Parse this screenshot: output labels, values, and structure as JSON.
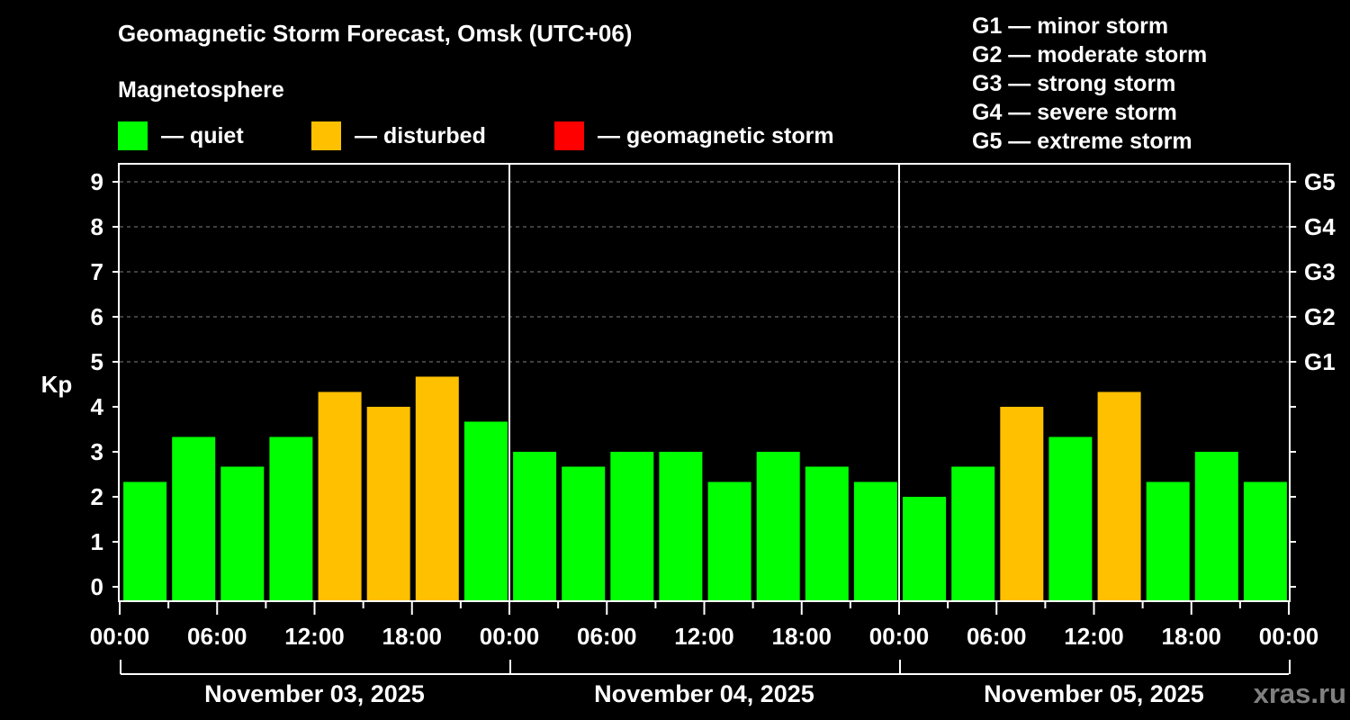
{
  "header": {
    "title": "Geomagnetic Storm Forecast, Omsk (UTC+06)",
    "subtitle": "Magnetosphere"
  },
  "legend": {
    "items": [
      {
        "label": "— quiet",
        "color": "#00ff00"
      },
      {
        "label": "— disturbed",
        "color": "#ffc000"
      },
      {
        "label": "— geomagnetic storm",
        "color": "#ff0000"
      }
    ]
  },
  "storm_scale": [
    "G1 — minor storm",
    "G2 — moderate storm",
    "G3 — strong storm",
    "G4 — severe storm",
    "G5 — extreme storm"
  ],
  "watermark": "xras.ru",
  "colors": {
    "quiet": "#00ff00",
    "disturbed": "#ffc000",
    "storm": "#ff0000",
    "background": "#000000",
    "axis": "#ffffff",
    "grid": "#808080",
    "watermark": "#808080"
  },
  "chart_data": {
    "type": "bar",
    "title": "Geomagnetic Storm Forecast, Omsk (UTC+06)",
    "subtitle": "Magnetosphere",
    "xlabel": "",
    "ylabel": "Kp",
    "ylim": [
      0,
      9
    ],
    "yticks": [
      0,
      1,
      2,
      3,
      4,
      5,
      6,
      7,
      8,
      9
    ],
    "right_axis_labels": [
      {
        "value": 5,
        "label": "G1"
      },
      {
        "value": 6,
        "label": "G2"
      },
      {
        "value": 7,
        "label": "G3"
      },
      {
        "value": 8,
        "label": "G4"
      },
      {
        "value": 9,
        "label": "G5"
      }
    ],
    "grid": {
      "horizontal_dashed_at": [
        5,
        6,
        7,
        8,
        9
      ]
    },
    "x_tick_labels": [
      "00:00",
      "06:00",
      "12:00",
      "18:00",
      "00:00",
      "06:00",
      "12:00",
      "18:00",
      "00:00",
      "06:00",
      "12:00",
      "18:00",
      "00:00"
    ],
    "days": [
      "November 03, 2025",
      "November 04, 2025",
      "November 05, 2025"
    ],
    "interval_hours": 3,
    "categories": [
      "Nov 03 00:00",
      "Nov 03 03:00",
      "Nov 03 06:00",
      "Nov 03 09:00",
      "Nov 03 12:00",
      "Nov 03 15:00",
      "Nov 03 18:00",
      "Nov 03 21:00",
      "Nov 04 00:00",
      "Nov 04 03:00",
      "Nov 04 06:00",
      "Nov 04 09:00",
      "Nov 04 12:00",
      "Nov 04 15:00",
      "Nov 04 18:00",
      "Nov 04 21:00",
      "Nov 05 00:00",
      "Nov 05 03:00",
      "Nov 05 06:00",
      "Nov 05 09:00",
      "Nov 05 12:00",
      "Nov 05 15:00",
      "Nov 05 18:00",
      "Nov 05 21:00"
    ],
    "values": [
      2.33,
      3.33,
      2.67,
      3.33,
      4.33,
      4.0,
      4.67,
      3.67,
      3.0,
      2.67,
      3.0,
      3.0,
      2.33,
      3.0,
      2.67,
      2.33,
      2.0,
      2.67,
      4.0,
      3.33,
      4.33,
      2.33,
      3.0,
      2.33
    ],
    "status": [
      "quiet",
      "quiet",
      "quiet",
      "quiet",
      "disturbed",
      "disturbed",
      "disturbed",
      "quiet",
      "quiet",
      "quiet",
      "quiet",
      "quiet",
      "quiet",
      "quiet",
      "quiet",
      "quiet",
      "quiet",
      "quiet",
      "disturbed",
      "quiet",
      "disturbed",
      "quiet",
      "quiet",
      "quiet"
    ],
    "legend_position": "top"
  }
}
